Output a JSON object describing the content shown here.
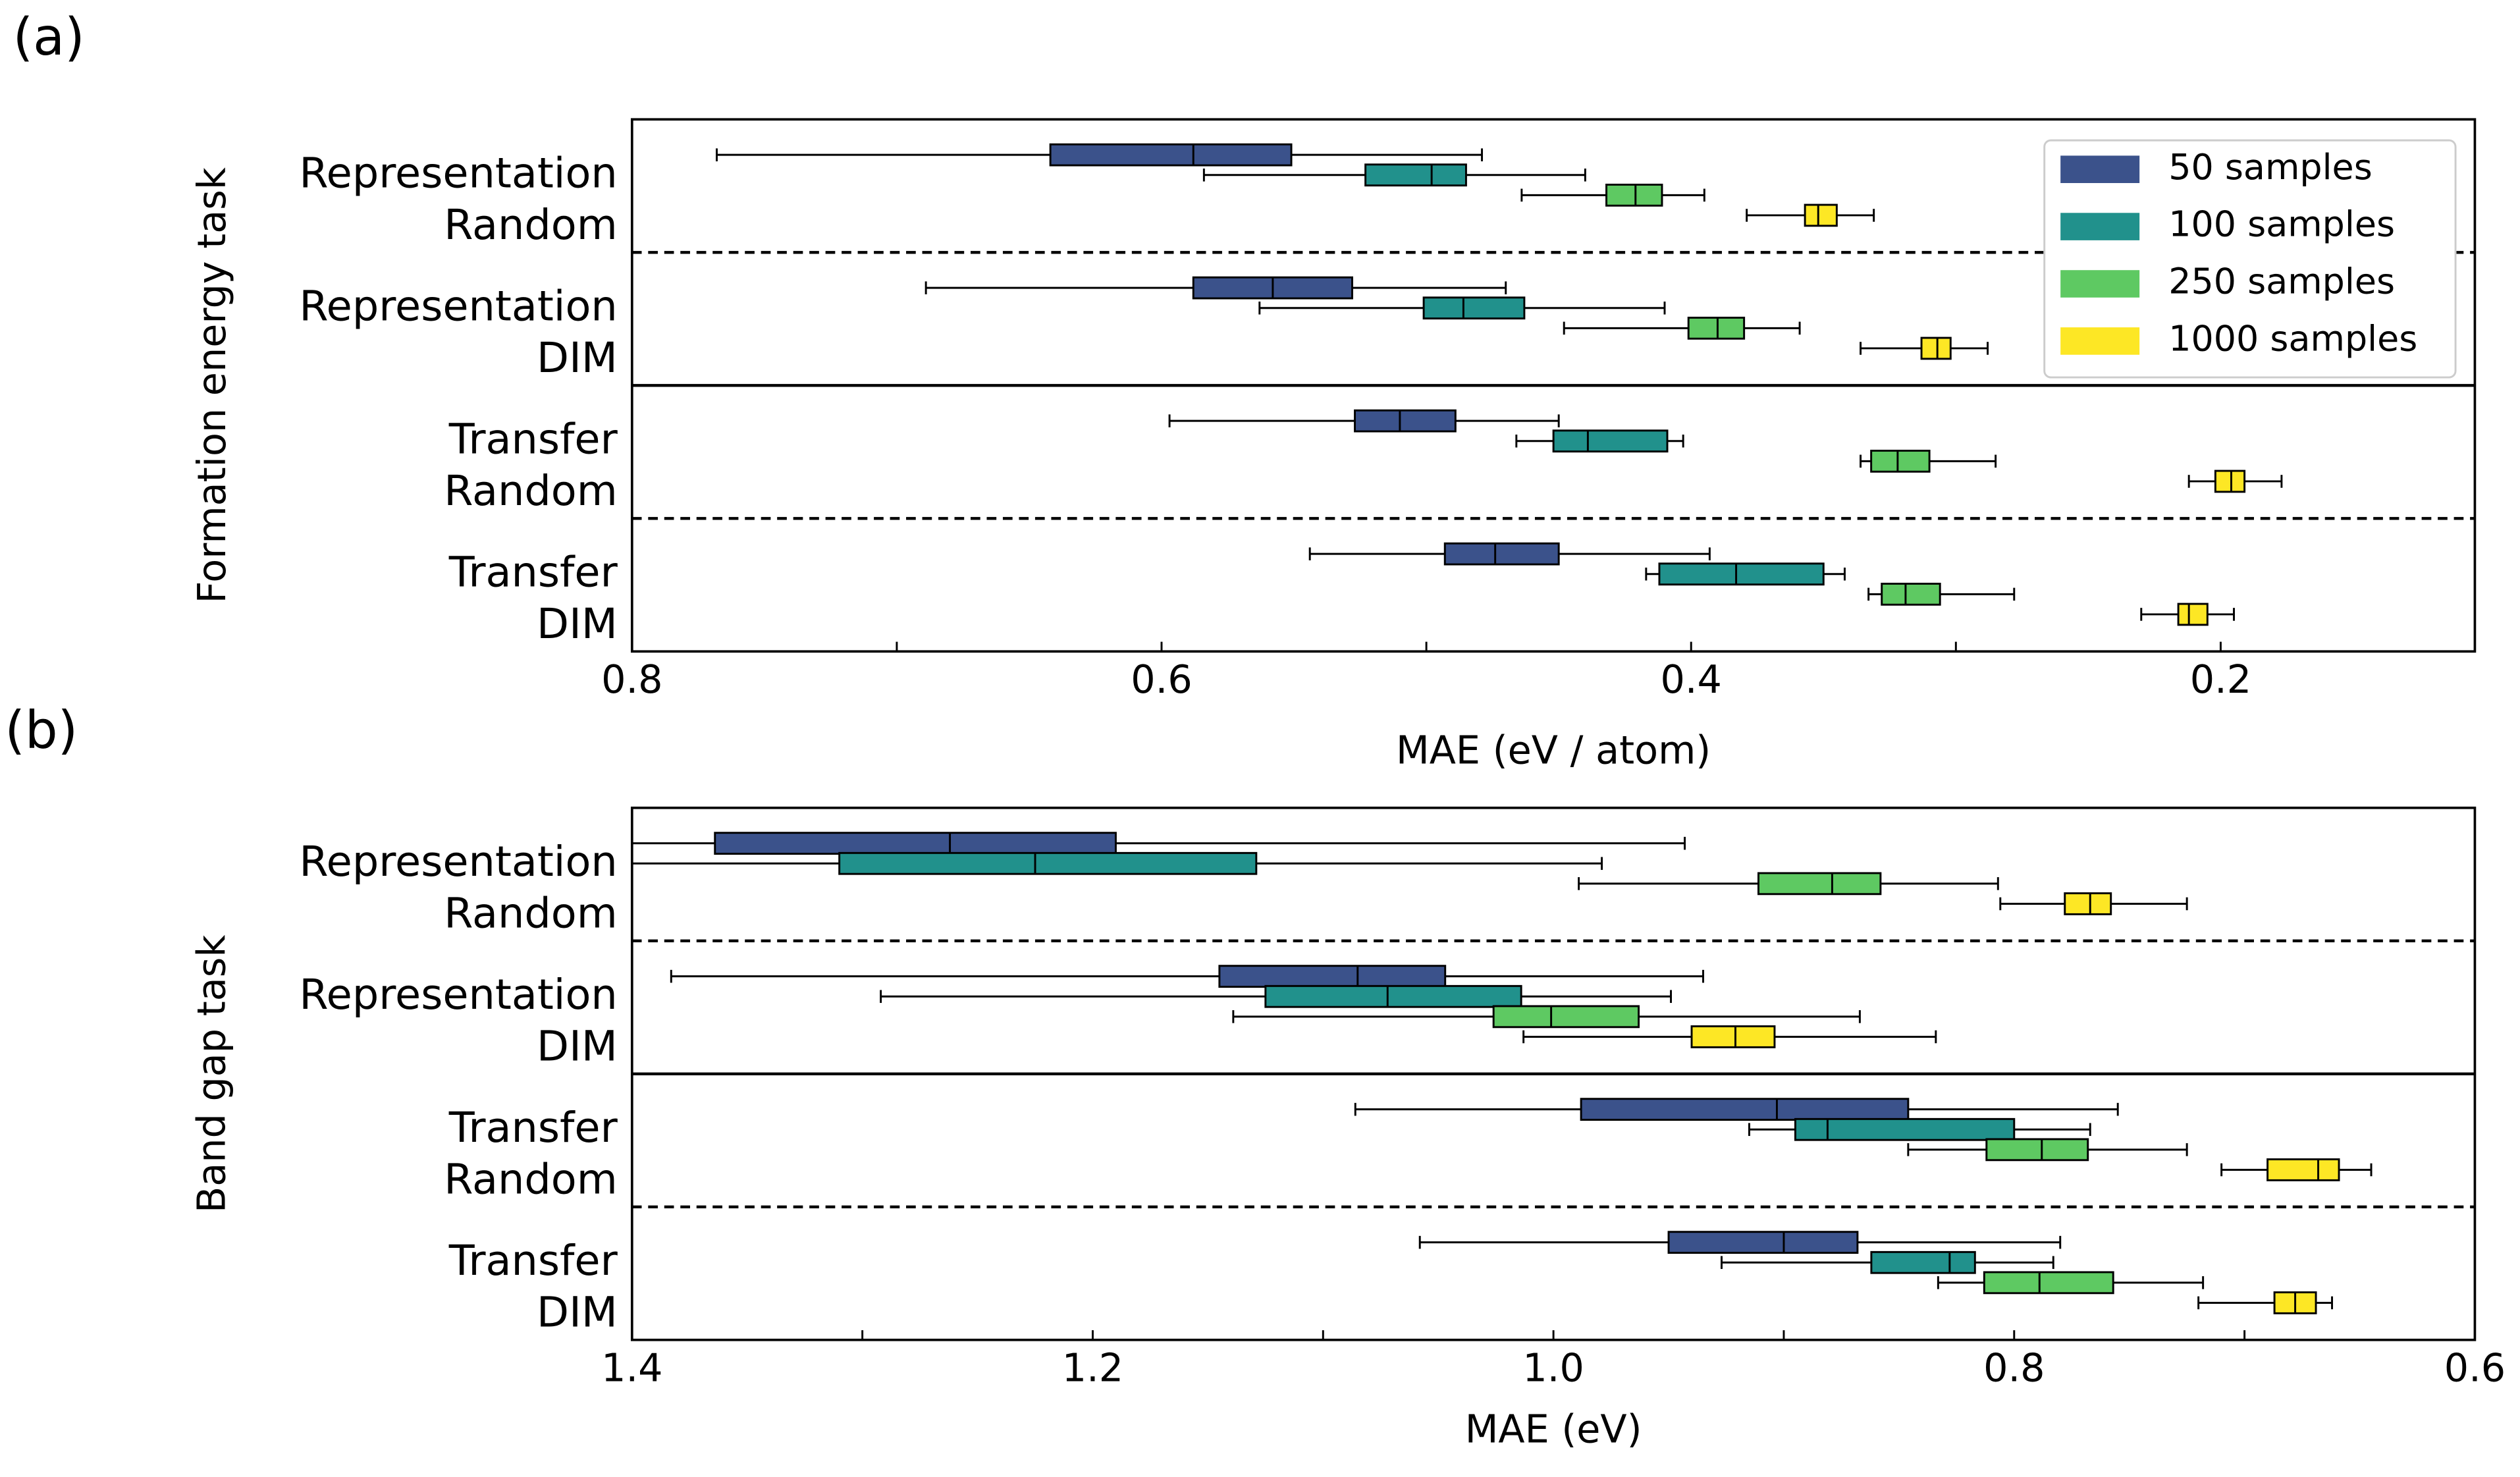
{
  "chart_data": [
    {
      "type": "box",
      "panel_label": "(a)",
      "ylabel": "Formation energy task",
      "xlabel": "MAE (eV / atom)",
      "categories": [
        [
          "Representation",
          "Random"
        ],
        [
          "Representation",
          "DIM"
        ],
        [
          "Transfer",
          "Random"
        ],
        [
          "Transfer",
          "DIM"
        ]
      ],
      "xlim": [
        0.8,
        0.104
      ],
      "xticks": [
        0.8,
        0.6,
        0.4,
        0.2
      ],
      "xticks_minor": [
        0.7,
        0.5,
        0.3
      ],
      "legend": "upper right",
      "series": [
        {
          "name": "50 samples",
          "color": "#3b528b",
          "values": [
            [
              0.479,
              0.551,
              0.588,
              0.642,
              0.768
            ],
            [
              0.47,
              0.528,
              0.558,
              0.588,
              0.689
            ],
            [
              0.45,
              0.489,
              0.51,
              0.527,
              0.597
            ],
            [
              0.393,
              0.45,
              0.474,
              0.493,
              0.544
            ]
          ]
        },
        {
          "name": "100 samples",
          "color": "#21918c",
          "values": [
            [
              0.44,
              0.485,
              0.498,
              0.523,
              0.584
            ],
            [
              0.41,
              0.463,
              0.486,
              0.501,
              0.563
            ],
            [
              0.403,
              0.409,
              0.439,
              0.452,
              0.466
            ],
            [
              0.342,
              0.35,
              0.383,
              0.412,
              0.417
            ]
          ]
        },
        {
          "name": "250 samples",
          "color": "#5ec962",
          "values": [
            [
              0.395,
              0.411,
              0.421,
              0.432,
              0.464
            ],
            [
              0.359,
              0.38,
              0.39,
              0.401,
              0.448
            ],
            [
              0.285,
              0.31,
              0.322,
              0.332,
              0.336
            ],
            [
              0.278,
              0.306,
              0.319,
              0.328,
              0.333
            ]
          ]
        },
        {
          "name": "1000 samples",
          "color": "#fde725",
          "values": [
            [
              0.331,
              0.345,
              0.352,
              0.357,
              0.379
            ],
            [
              0.288,
              0.302,
              0.307,
              0.313,
              0.336
            ],
            [
              0.177,
              0.191,
              0.196,
              0.202,
              0.212
            ],
            [
              0.195,
              0.205,
              0.212,
              0.216,
              0.23
            ]
          ]
        }
      ]
    },
    {
      "type": "box",
      "panel_label": "(b)",
      "ylabel": "Band gap task",
      "xlabel": "MAE (eV)",
      "categories": [
        [
          "Representation",
          "Random"
        ],
        [
          "Representation",
          "DIM"
        ],
        [
          "Transfer",
          "Random"
        ],
        [
          "Transfer",
          "DIM"
        ]
      ],
      "xlim": [
        1.4,
        0.6
      ],
      "xticks": [
        1.4,
        1.2,
        {
          "value": 1.0,
          "label": "1.0"
        },
        0.8,
        0.6
      ],
      "xticks_minor": [
        1.3,
        1.1,
        0.9,
        0.7
      ],
      "series": [
        {
          "color": "#3b528b",
          "values": [
            [
              0.943,
              1.19,
              1.262,
              1.364,
              1.42
            ],
            [
              0.935,
              1.047,
              1.085,
              1.145,
              1.383
            ],
            [
              0.755,
              0.846,
              0.903,
              0.988,
              1.086
            ],
            [
              0.78,
              0.868,
              0.9,
              0.95,
              1.058
            ]
          ]
        },
        {
          "color": "#21918c",
          "values": [
            [
              0.979,
              1.129,
              1.225,
              1.31,
              1.41
            ],
            [
              0.949,
              1.014,
              1.072,
              1.125,
              1.292
            ],
            [
              0.767,
              0.8,
              0.881,
              0.895,
              0.915
            ],
            [
              0.783,
              0.817,
              0.828,
              0.862,
              0.927
            ]
          ]
        },
        {
          "color": "#5ec962",
          "values": [
            [
              0.807,
              0.858,
              0.879,
              0.911,
              0.989
            ],
            [
              0.867,
              0.963,
              1.001,
              1.026,
              1.139
            ],
            [
              0.725,
              0.768,
              0.788,
              0.812,
              0.846
            ],
            [
              0.718,
              0.757,
              0.789,
              0.813,
              0.833
            ]
          ]
        },
        {
          "color": "#fde725",
          "values": [
            [
              0.725,
              0.758,
              0.767,
              0.778,
              0.806
            ],
            [
              0.834,
              0.904,
              0.921,
              0.94,
              1.013
            ],
            [
              0.645,
              0.659,
              0.668,
              0.69,
              0.71
            ],
            [
              0.662,
              0.669,
              0.678,
              0.687,
              0.72
            ]
          ]
        }
      ]
    }
  ]
}
